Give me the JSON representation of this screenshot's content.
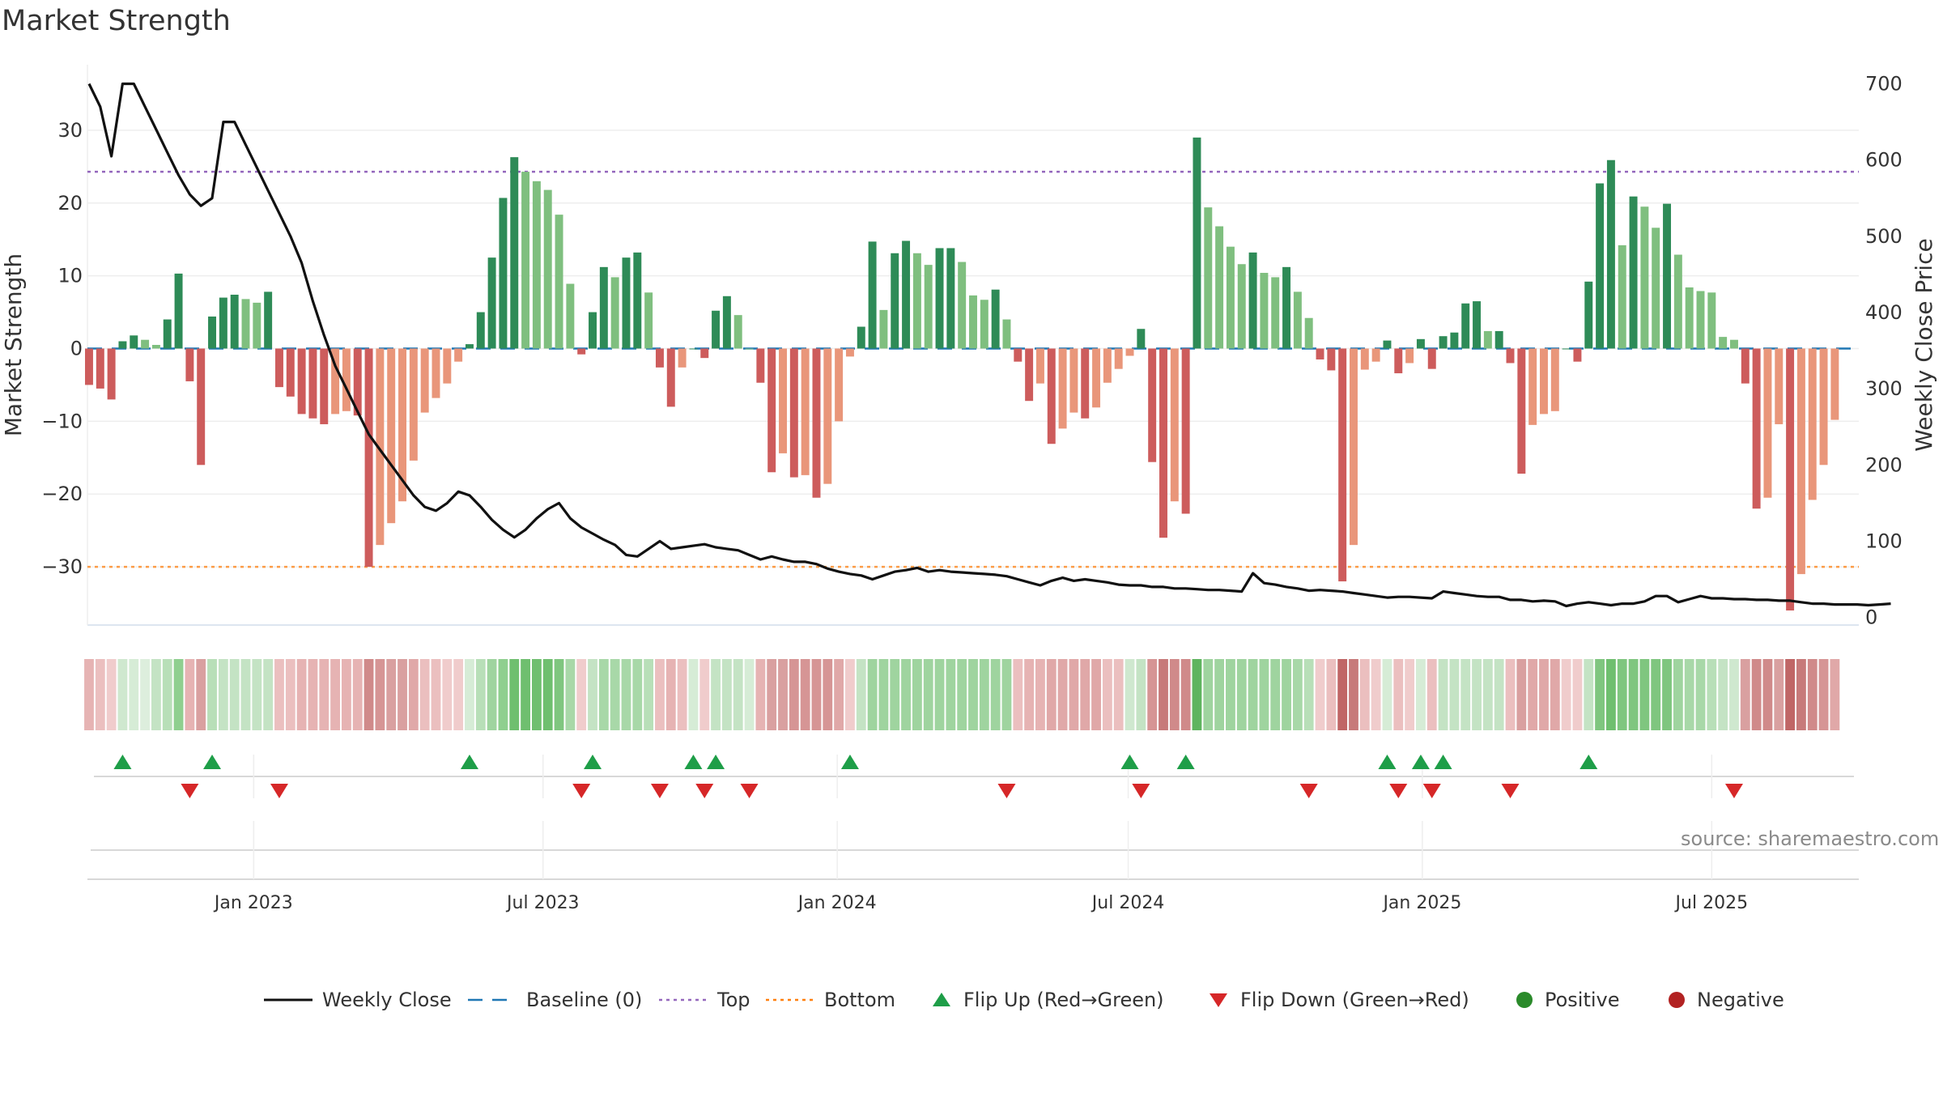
{
  "title": "Market Strength",
  "source": "source: sharemaestro.com",
  "colors": {
    "dark_green": "#2e8b57",
    "light_green": "#7fbf7f",
    "dark_red": "#cd5c5c",
    "light_red": "#e9967a",
    "close_line": "#111111",
    "baseline": "#1f77b4",
    "top": "#9467bd",
    "bottom": "#ff7f0e",
    "flip_up": "#1e9e48",
    "flip_down": "#d62728",
    "positive": "#2a8a2a",
    "negative": "#b22222"
  },
  "legend": [
    {
      "key": "close",
      "label": "Weekly Close"
    },
    {
      "key": "baseline",
      "label": "Baseline (0)"
    },
    {
      "key": "top",
      "label": "Top"
    },
    {
      "key": "bottom",
      "label": "Bottom"
    },
    {
      "key": "flip_up",
      "label": "Flip Up (Red→Green)"
    },
    {
      "key": "flip_down",
      "label": "Flip Down (Green→Red)"
    },
    {
      "key": "positive",
      "label": "Positive"
    },
    {
      "key": "negative",
      "label": "Negative"
    }
  ],
  "chart_data": {
    "type": "bar",
    "ylabel": "Market Strength",
    "y2label": "Weekly Close Price",
    "ylim": [
      -38,
      39
    ],
    "y2lim": [
      -10,
      725
    ],
    "yticks": [
      -30,
      -20,
      -10,
      0,
      10,
      20,
      30
    ],
    "ytick_labels": [
      "−30",
      "−20",
      "−10",
      "0",
      "10",
      "20",
      "30"
    ],
    "y2ticks": [
      0,
      100,
      200,
      300,
      400,
      500,
      600,
      700
    ],
    "top_level": 24.3,
    "bottom_level": -30,
    "x_range": [
      "2022-09-19",
      "2025-10-01"
    ],
    "first_week": "2022-09-20",
    "xticks": [
      {
        "date": "2023-01-01",
        "label": "Jan 2023"
      },
      {
        "date": "2023-07-01",
        "label": "Jul 2023"
      },
      {
        "date": "2024-01-01",
        "label": "Jan 2024"
      },
      {
        "date": "2024-07-01",
        "label": "Jul 2024"
      },
      {
        "date": "2025-01-01",
        "label": "Jan 2025"
      },
      {
        "date": "2025-07-01",
        "label": "Jul 2025"
      }
    ],
    "strength": [
      -5,
      -5.5,
      -7,
      1,
      1.8,
      1.2,
      0.5,
      4,
      10.3,
      -4.5,
      -16,
      4.4,
      7,
      7.4,
      6.8,
      6.3,
      7.8,
      -5.3,
      -6.6,
      -9,
      -9.6,
      -10.4,
      -9,
      -8.6,
      -9.2,
      -30,
      -27,
      -24,
      -21,
      -15.4,
      -8.8,
      -6.8,
      -4.8,
      -1.8,
      0.6,
      5,
      12.5,
      20.7,
      26.3,
      24.3,
      23,
      21.8,
      18.4,
      8.9,
      -0.8,
      5,
      11.2,
      9.8,
      12.5,
      13.2,
      7.7,
      -2.6,
      -8,
      -2.6,
      0,
      -1.3,
      5.2,
      7.2,
      4.6,
      0,
      -4.7,
      -17,
      -14.4,
      -17.7,
      -17.4,
      -20.5,
      -18.6,
      -10,
      -1.1,
      3,
      14.7,
      5.3,
      13.1,
      14.8,
      13.1,
      11.5,
      13.8,
      13.8,
      11.9,
      7.3,
      6.7,
      8.1,
      4,
      -1.8,
      -7.2,
      -4.8,
      -13.1,
      -11,
      -8.8,
      -9.6,
      -8.1,
      -4.7,
      -2.8,
      -1,
      2.7,
      -15.6,
      -26,
      -21,
      -22.7,
      29,
      19.4,
      16.8,
      14,
      11.6,
      13.2,
      10.4,
      9.8,
      11.2,
      7.8,
      4.2,
      -1.5,
      -3,
      -32,
      -27,
      -2.9,
      -1.8,
      1.1,
      -3.4,
      -2,
      1.3,
      -2.8,
      1.7,
      2.2,
      6.2,
      6.5,
      2.4,
      2.4,
      -2,
      -17.2,
      -10.5,
      -9,
      -8.6,
      0,
      -1.8,
      9.2,
      22.7,
      25.9,
      14.2,
      20.9,
      19.5,
      16.6,
      19.9,
      12.9,
      8.4,
      7.9,
      7.7,
      1.6,
      1.2,
      -4.8,
      -22,
      -20.5,
      -10.4,
      -36,
      -31,
      -20.8,
      -16,
      -9.8
    ],
    "close": [
      700,
      670,
      605,
      700,
      700,
      670,
      640,
      610,
      580,
      555,
      540,
      550,
      650,
      650,
      620,
      590,
      560,
      530,
      500,
      465,
      415,
      370,
      330,
      300,
      270,
      240,
      220,
      200,
      180,
      160,
      145,
      140,
      150,
      165,
      160,
      145,
      128,
      115,
      105,
      115,
      130,
      142,
      150,
      130,
      118,
      110,
      102,
      95,
      82,
      80,
      90,
      100,
      90,
      92,
      94,
      96,
      92,
      90,
      88,
      82,
      76,
      80,
      76,
      73,
      73,
      70,
      64,
      60,
      57,
      55,
      50,
      55,
      60,
      62,
      65,
      60,
      62,
      60,
      59,
      58,
      57,
      56,
      54,
      50,
      46,
      42,
      48,
      52,
      48,
      50,
      48,
      46,
      43,
      42,
      42,
      40,
      40,
      38,
      38,
      37,
      36,
      36,
      35,
      34,
      58,
      45,
      43,
      40,
      38,
      35,
      36,
      35,
      34,
      32,
      30,
      28,
      26,
      27,
      27,
      26,
      25,
      34,
      32,
      30,
      28,
      27,
      27,
      23,
      23,
      21,
      22,
      21,
      15,
      18,
      20,
      18,
      16,
      18,
      18,
      21,
      28,
      28,
      20,
      24,
      28,
      25,
      25,
      24,
      24,
      23,
      23,
      22,
      22,
      20,
      18,
      18,
      17,
      17,
      17,
      16,
      17,
      18
    ],
    "flip_up_weeks": [
      3,
      11,
      34,
      45,
      54,
      56,
      68,
      93,
      98,
      116,
      119,
      121,
      134
    ],
    "flip_down_weeks": [
      9,
      17,
      44,
      51,
      55,
      59,
      82,
      94,
      109,
      117,
      120,
      127,
      147
    ],
    "regime_strip_colors": [
      "#e6b3b3",
      "#ebbfbf",
      "#f0cccc",
      "#cfe8cf",
      "#d6ecd6",
      "#ddeedd",
      "#c4e3c4",
      "#b8dfb8",
      "#8fcf8f",
      "#e6b3b3",
      "#d9a0a0",
      "#b8dfb8",
      "#c4e3c4",
      "#c4e3c4",
      "#c4e3c4",
      "#c4e3c4",
      "#c4e3c4",
      "#ebbfbf",
      "#ebbfbf",
      "#e6b3b3",
      "#e6b3b3",
      "#e6b3b3",
      "#e6b3b3",
      "#e6b3b3",
      "#e6b3b3",
      "#d08a8a",
      "#d69595",
      "#d9a0a0",
      "#d9a0a0",
      "#e0a8a8",
      "#ebbfbf",
      "#ebbfbf",
      "#f0cccc",
      "#f0cccc",
      "#d6ecd6",
      "#b8dfb8",
      "#9fd49f",
      "#8fcf8f",
      "#6fbf6f",
      "#6fbf6f",
      "#6fbf6f",
      "#6fbf6f",
      "#7fc67f",
      "#a8d8a8",
      "#f0cccc",
      "#c4e3c4",
      "#a8d8a8",
      "#a8d8a8",
      "#a8d8a8",
      "#a8d8a8",
      "#b8dfb8",
      "#ebbfbf",
      "#e6b3b3",
      "#ebbfbf",
      "#d6ecd6",
      "#f0cccc",
      "#c4e3c4",
      "#c4e3c4",
      "#c4e3c4",
      "#d6ecd6",
      "#e6b3b3",
      "#d9a0a0",
      "#d9a0a0",
      "#d69595",
      "#d69595",
      "#d69595",
      "#d69595",
      "#e0a8a8",
      "#f0cccc",
      "#c4e3c4",
      "#9fd49f",
      "#9fd49f",
      "#9fd49f",
      "#9fd49f",
      "#9fd49f",
      "#9fd49f",
      "#9fd49f",
      "#9fd49f",
      "#9fd49f",
      "#9fd49f",
      "#9fd49f",
      "#9fd49f",
      "#9fd49f",
      "#ebbfbf",
      "#e6b3b3",
      "#e6b3b3",
      "#e0a8a8",
      "#e0a8a8",
      "#e0a8a8",
      "#e0a8a8",
      "#e0a8a8",
      "#ebbfbf",
      "#ebbfbf",
      "#cfe8cf",
      "#c4e3c4",
      "#d69595",
      "#c77a7a",
      "#d08a8a",
      "#d08a8a",
      "#5fb45f",
      "#9fd49f",
      "#9fd49f",
      "#9fd49f",
      "#9fd49f",
      "#9fd49f",
      "#9fd49f",
      "#9fd49f",
      "#9fd49f",
      "#a8d8a8",
      "#b8dfb8",
      "#f0cccc",
      "#ebbfbf",
      "#c06666",
      "#c77a7a",
      "#ebbfbf",
      "#f0cccc",
      "#d6ecd6",
      "#ebbfbf",
      "#f0cccc",
      "#d6ecd6",
      "#ebbfbf",
      "#c4e3c4",
      "#c4e3c4",
      "#c4e3c4",
      "#c4e3c4",
      "#c4e3c4",
      "#c4e3c4",
      "#ebbfbf",
      "#d9a0a0",
      "#e0a8a8",
      "#e0a8a8",
      "#e0a8a8",
      "#f0cccc",
      "#f0cccc",
      "#c4e3c4",
      "#7fc67f",
      "#6fbf6f",
      "#7fc67f",
      "#7fc67f",
      "#7fc67f",
      "#7fc67f",
      "#7fc67f",
      "#9fd49f",
      "#a8d8a8",
      "#a8d8a8",
      "#b8dfb8",
      "#c4e3c4",
      "#cfe8cf",
      "#d9a0a0",
      "#d08a8a",
      "#d08a8a",
      "#d9a0a0",
      "#c06666",
      "#c77a7a",
      "#d08a8a",
      "#d69595",
      "#e0a8a8"
    ]
  }
}
